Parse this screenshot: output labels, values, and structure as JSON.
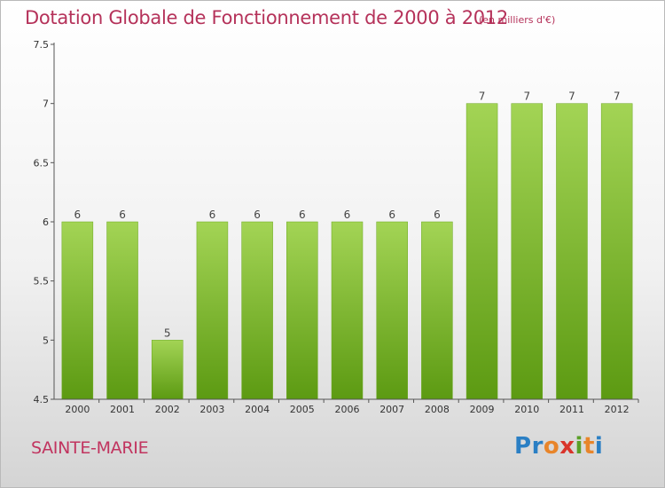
{
  "chart_data": {
    "type": "bar",
    "title": "Dotation Globale de Fonctionnement de 2000 à 2012",
    "subtitle": "(en milliers d'€)",
    "categories": [
      "2000",
      "2001",
      "2002",
      "2003",
      "2004",
      "2005",
      "2006",
      "2007",
      "2008",
      "2009",
      "2010",
      "2011",
      "2012"
    ],
    "values": [
      6,
      6,
      5,
      6,
      6,
      6,
      6,
      6,
      6,
      7,
      7,
      7,
      7
    ],
    "data_labels": [
      "6",
      "6",
      "5",
      "6",
      "6",
      "6",
      "6",
      "6",
      "6",
      "7",
      "7",
      "7",
      "7"
    ],
    "ylim": [
      4.5,
      7.5
    ],
    "yticks": [
      4.5,
      5,
      5.5,
      6,
      6.5,
      7,
      7.5
    ],
    "ytick_labels": [
      "4.5",
      "5",
      "5.5",
      "6",
      "6.5",
      "7",
      "7.5"
    ],
    "xlabel": "",
    "ylabel": "",
    "grid": false,
    "bar_color": "#7dbb2f",
    "bar_color_light": "#9fd150",
    "bar_color_dark": "#5c9a12"
  },
  "commune": "SAINTE-MARIE",
  "logo": {
    "text": "Proxiti",
    "letters": [
      {
        "ch": "P",
        "color": "#2a7fc4"
      },
      {
        "ch": "r",
        "color": "#2a7fc4"
      },
      {
        "ch": "o",
        "color": "#e8852a"
      },
      {
        "ch": "x",
        "color": "#d9342b"
      },
      {
        "ch": "i",
        "color": "#5aa028"
      },
      {
        "ch": "t",
        "color": "#e8852a"
      },
      {
        "ch": "i",
        "color": "#2a7fc4"
      }
    ]
  },
  "colors": {
    "title": "#b5325a",
    "axis": "#555555",
    "tick_text": "#333333"
  }
}
